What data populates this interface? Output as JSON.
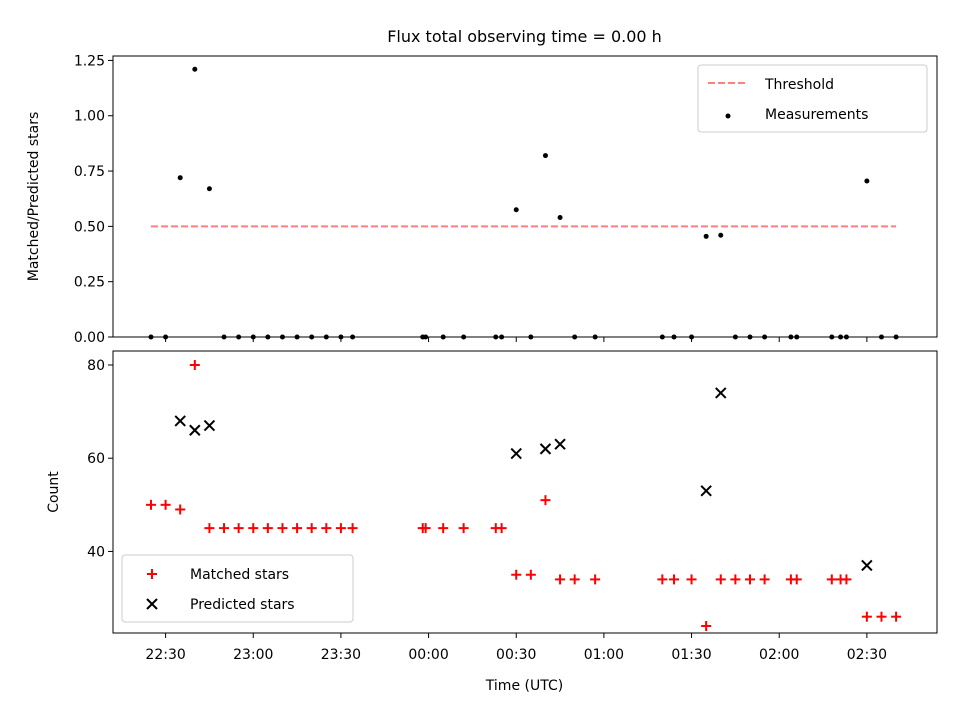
{
  "figure": {
    "title": "Flux total observing time = 0.00 h"
  },
  "colors": {
    "threshold": "#ff7f7f",
    "measurement": "#000000",
    "matched": "#ff0000",
    "predicted": "#000000"
  },
  "chart_data": [
    {
      "type": "scatter",
      "panel": "top",
      "title": "Flux total observing time = 0.00 h",
      "xlabel": "",
      "ylabel": "Matched/Predicted stars",
      "ylim": [
        0,
        1.27
      ],
      "yticks": [
        0.0,
        0.25,
        0.5,
        0.75,
        1.0,
        1.25
      ],
      "ytick_labels": [
        "0.00",
        "0.25",
        "0.50",
        "0.75",
        "1.00",
        "1.25"
      ],
      "grid": false,
      "legend_position": "top-right",
      "threshold": {
        "name": "Threshold",
        "style": "dashed",
        "value": 0.5,
        "x_start": "22:25",
        "x_end": "02:40"
      },
      "series": [
        {
          "name": "Measurements",
          "marker": "dot",
          "x": [
            "22:25",
            "22:30",
            "22:35",
            "22:40",
            "22:45",
            "22:50",
            "22:55",
            "23:00",
            "23:05",
            "23:10",
            "23:15",
            "23:20",
            "23:25",
            "23:30",
            "23:34",
            "23:58",
            "23:59",
            "00:05",
            "00:12",
            "00:23",
            "00:25",
            "00:30",
            "00:35",
            "00:40",
            "00:45",
            "00:50",
            "00:57",
            "01:20",
            "01:24",
            "01:30",
            "01:35",
            "01:40",
            "01:45",
            "01:50",
            "01:55",
            "02:04",
            "02:06",
            "02:18",
            "02:21",
            "02:23",
            "02:30",
            "02:35",
            "02:40"
          ],
          "y": [
            0,
            0,
            0.72,
            1.21,
            0.67,
            0,
            0,
            0,
            0,
            0,
            0,
            0,
            0,
            0,
            0,
            0,
            0,
            0,
            0,
            0,
            0,
            0.575,
            0,
            0.82,
            0.54,
            0,
            0,
            0,
            0,
            0,
            0.455,
            0.46,
            0,
            0,
            0,
            0,
            0,
            0,
            0,
            0,
            0.705,
            0,
            0
          ]
        }
      ]
    },
    {
      "type": "scatter",
      "panel": "bottom",
      "xlabel": "Time (UTC)",
      "ylabel": "Count",
      "ylim": [
        22.5,
        83
      ],
      "yticks": [
        40,
        60,
        80
      ],
      "ytick_labels": [
        "40",
        "60",
        "80"
      ],
      "xlim": [
        "22:12",
        "02:54"
      ],
      "xticks": [
        "22:30",
        "23:00",
        "23:30",
        "00:00",
        "00:30",
        "01:00",
        "01:30",
        "02:00",
        "02:30"
      ],
      "xtick_labels": [
        "22:30",
        "23:00",
        "23:30",
        "00:00",
        "00:30",
        "01:00",
        "01:30",
        "02:00",
        "02:30"
      ],
      "grid": false,
      "legend_position": "bottom-left",
      "series": [
        {
          "name": "Matched stars",
          "marker": "plus",
          "x": [
            "22:25",
            "22:30",
            "22:35",
            "22:40",
            "22:45",
            "22:50",
            "22:55",
            "23:00",
            "23:05",
            "23:10",
            "23:15",
            "23:20",
            "23:25",
            "23:30",
            "23:34",
            "23:58",
            "23:59",
            "00:05",
            "00:12",
            "00:23",
            "00:25",
            "00:30",
            "00:35",
            "00:40",
            "00:45",
            "00:50",
            "00:57",
            "01:20",
            "01:24",
            "01:30",
            "01:35",
            "01:40",
            "01:45",
            "01:50",
            "01:55",
            "02:04",
            "02:06",
            "02:18",
            "02:21",
            "02:23",
            "02:30",
            "02:35",
            "02:40"
          ],
          "y": [
            50,
            50,
            49,
            80,
            45,
            45,
            45,
            45,
            45,
            45,
            45,
            45,
            45,
            45,
            45,
            45,
            45,
            45,
            45,
            45,
            45,
            35,
            35,
            51,
            34,
            34,
            34,
            34,
            34,
            34,
            24,
            34,
            34,
            34,
            34,
            34,
            34,
            34,
            34,
            34,
            26,
            26,
            26
          ]
        },
        {
          "name": "Predicted stars",
          "marker": "x",
          "x": [
            "22:35",
            "22:40",
            "22:45",
            "00:30",
            "00:40",
            "00:45",
            "01:35",
            "01:40",
            "02:30"
          ],
          "y": [
            68,
            66,
            67,
            61,
            62,
            63,
            53,
            74,
            37
          ]
        }
      ]
    }
  ]
}
